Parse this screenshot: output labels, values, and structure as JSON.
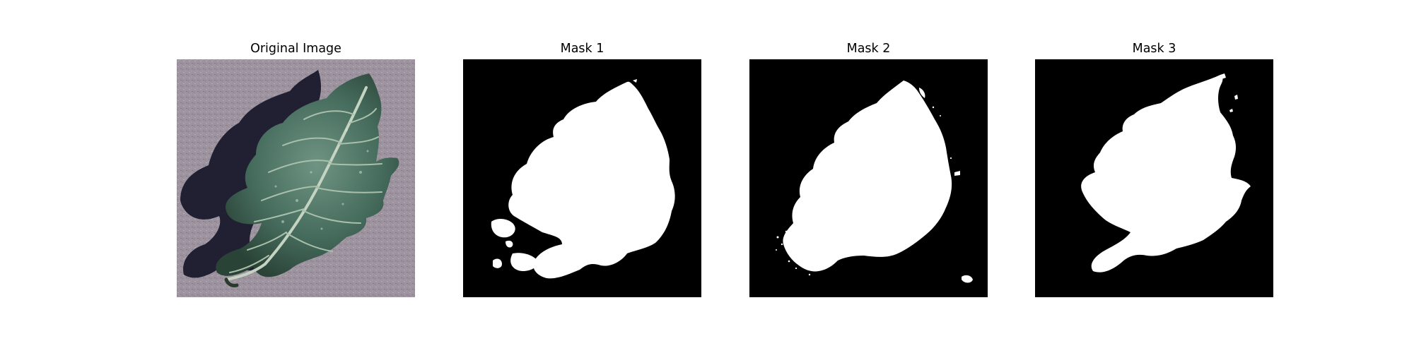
{
  "panels": [
    {
      "title": "Original Image",
      "content": "photo"
    },
    {
      "title": "Mask 1",
      "content": "mask"
    },
    {
      "title": "Mask 2",
      "content": "mask"
    },
    {
      "title": "Mask 3",
      "content": "mask"
    }
  ],
  "colors": {
    "figure_background": "#ffffff",
    "mask_background": "#000000",
    "mask_foreground": "#ffffff",
    "leaf_dark": "#2f4b3e",
    "leaf_mid": "#4f7566",
    "leaf_vein": "#b9cbb9",
    "surface": "#9c939f",
    "shadow": "#161628"
  }
}
